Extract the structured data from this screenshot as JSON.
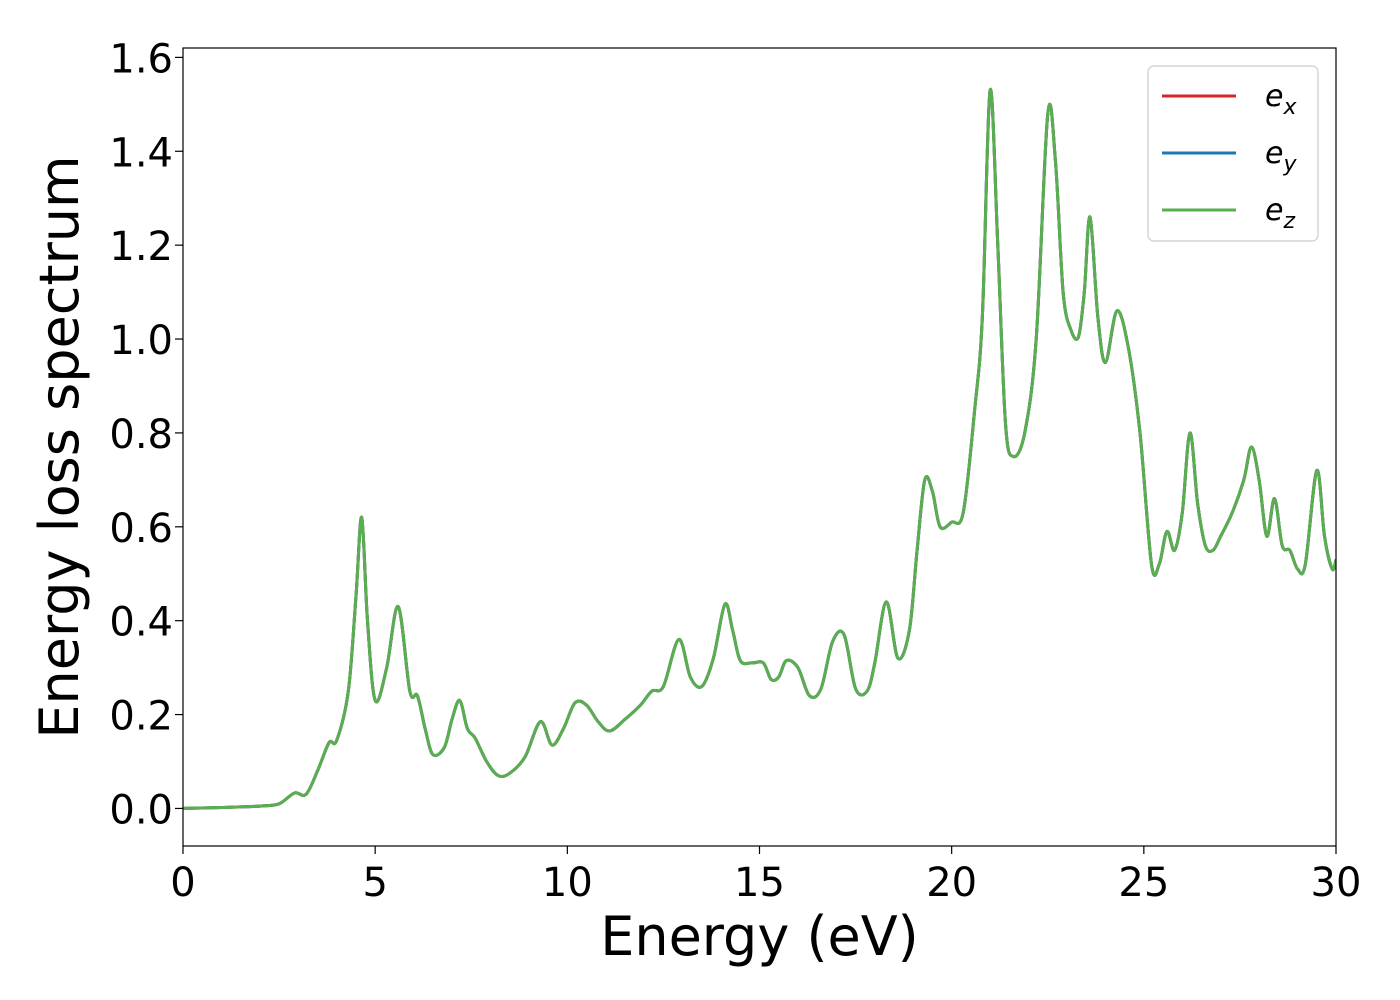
{
  "chart_data": {
    "type": "line",
    "title": "",
    "xlabel": "Energy (eV)",
    "ylabel": "Energy loss spectrum",
    "xlim": [
      0,
      30
    ],
    "ylim": [
      -0.08,
      1.62
    ],
    "xticks": [
      0,
      5,
      10,
      15,
      20,
      25,
      30
    ],
    "xtick_labels": [
      "0",
      "5",
      "10",
      "15",
      "20",
      "25",
      "30"
    ],
    "yticks": [
      0.0,
      0.2,
      0.4,
      0.6,
      0.8,
      1.0,
      1.2,
      1.4,
      1.6
    ],
    "ytick_labels": [
      "0.0",
      "0.2",
      "0.4",
      "0.6",
      "0.8",
      "1.0",
      "1.2",
      "1.4",
      "1.6"
    ],
    "grid": false,
    "legend_position": "top-right",
    "colors": {
      "e_x": "#d62728",
      "e_y": "#1f77b4",
      "e_z": "#5aae50"
    },
    "legend": [
      {
        "base": "e",
        "sub": "x",
        "series_key": "e_x"
      },
      {
        "base": "e",
        "sub": "y",
        "series_key": "e_y"
      },
      {
        "base": "e",
        "sub": "z",
        "series_key": "e_z"
      }
    ],
    "x": [
      0,
      1,
      2,
      2.5,
      2.9,
      3.2,
      3.5,
      3.8,
      4.0,
      4.3,
      4.5,
      4.65,
      4.8,
      5.0,
      5.3,
      5.6,
      5.9,
      6.1,
      6.3,
      6.5,
      6.8,
      7.0,
      7.2,
      7.4,
      7.6,
      7.9,
      8.2,
      8.5,
      8.9,
      9.3,
      9.6,
      9.9,
      10.2,
      10.5,
      10.8,
      11.1,
      11.5,
      11.9,
      12.2,
      12.5,
      12.9,
      13.2,
      13.5,
      13.8,
      14.1,
      14.3,
      14.5,
      14.8,
      15.1,
      15.3,
      15.5,
      15.7,
      16.0,
      16.3,
      16.6,
      16.9,
      17.2,
      17.5,
      17.8,
      18.0,
      18.3,
      18.6,
      18.9,
      19.1,
      19.3,
      19.5,
      19.7,
      20.0,
      20.3,
      20.6,
      20.8,
      21.0,
      21.2,
      21.4,
      21.6,
      21.9,
      22.2,
      22.5,
      22.7,
      22.9,
      23.1,
      23.3,
      23.45,
      23.6,
      23.8,
      24.0,
      24.3,
      24.6,
      24.9,
      25.2,
      25.4,
      25.6,
      25.8,
      26.0,
      26.2,
      26.4,
      26.6,
      26.8,
      27.0,
      27.3,
      27.6,
      27.8,
      28.0,
      28.2,
      28.4,
      28.6,
      28.8,
      29.0,
      29.2,
      29.5,
      29.7,
      29.9,
      30.0
    ],
    "series": [
      {
        "name": "e_x",
        "values": [
          0.0,
          0.002,
          0.005,
          0.01,
          0.033,
          0.03,
          0.08,
          0.14,
          0.145,
          0.25,
          0.45,
          0.62,
          0.4,
          0.23,
          0.3,
          0.43,
          0.25,
          0.24,
          0.17,
          0.115,
          0.13,
          0.19,
          0.23,
          0.17,
          0.15,
          0.1,
          0.07,
          0.075,
          0.11,
          0.185,
          0.135,
          0.17,
          0.225,
          0.22,
          0.185,
          0.165,
          0.19,
          0.22,
          0.25,
          0.26,
          0.36,
          0.28,
          0.26,
          0.32,
          0.435,
          0.38,
          0.315,
          0.31,
          0.31,
          0.275,
          0.28,
          0.315,
          0.3,
          0.24,
          0.255,
          0.355,
          0.37,
          0.255,
          0.25,
          0.31,
          0.44,
          0.32,
          0.38,
          0.55,
          0.7,
          0.675,
          0.6,
          0.61,
          0.63,
          0.85,
          1.05,
          1.53,
          1.2,
          0.82,
          0.75,
          0.8,
          1.0,
          1.48,
          1.38,
          1.1,
          1.02,
          1.005,
          1.1,
          1.26,
          1.05,
          0.95,
          1.06,
          0.98,
          0.8,
          0.52,
          0.52,
          0.59,
          0.55,
          0.63,
          0.8,
          0.65,
          0.56,
          0.55,
          0.58,
          0.63,
          0.7,
          0.77,
          0.7,
          0.58,
          0.66,
          0.56,
          0.55,
          0.51,
          0.52,
          0.72,
          0.58,
          0.51,
          0.53
        ]
      },
      {
        "name": "e_y",
        "values": [
          0.0,
          0.002,
          0.005,
          0.01,
          0.033,
          0.03,
          0.08,
          0.14,
          0.145,
          0.25,
          0.45,
          0.62,
          0.4,
          0.23,
          0.3,
          0.43,
          0.25,
          0.24,
          0.17,
          0.115,
          0.13,
          0.19,
          0.23,
          0.17,
          0.15,
          0.1,
          0.07,
          0.075,
          0.11,
          0.185,
          0.135,
          0.17,
          0.225,
          0.22,
          0.185,
          0.165,
          0.19,
          0.22,
          0.25,
          0.26,
          0.36,
          0.28,
          0.26,
          0.32,
          0.435,
          0.38,
          0.315,
          0.31,
          0.31,
          0.275,
          0.28,
          0.315,
          0.3,
          0.24,
          0.255,
          0.355,
          0.37,
          0.255,
          0.25,
          0.31,
          0.44,
          0.32,
          0.38,
          0.55,
          0.7,
          0.675,
          0.6,
          0.61,
          0.63,
          0.85,
          1.05,
          1.53,
          1.2,
          0.82,
          0.75,
          0.8,
          1.0,
          1.48,
          1.38,
          1.1,
          1.02,
          1.005,
          1.1,
          1.26,
          1.05,
          0.95,
          1.06,
          0.98,
          0.8,
          0.52,
          0.52,
          0.59,
          0.55,
          0.63,
          0.8,
          0.65,
          0.56,
          0.55,
          0.58,
          0.63,
          0.7,
          0.77,
          0.7,
          0.58,
          0.66,
          0.56,
          0.55,
          0.51,
          0.52,
          0.72,
          0.58,
          0.51,
          0.53
        ]
      },
      {
        "name": "e_z",
        "values": [
          0.0,
          0.002,
          0.005,
          0.01,
          0.033,
          0.03,
          0.08,
          0.14,
          0.145,
          0.25,
          0.45,
          0.62,
          0.4,
          0.23,
          0.3,
          0.43,
          0.25,
          0.24,
          0.17,
          0.115,
          0.13,
          0.19,
          0.23,
          0.17,
          0.15,
          0.1,
          0.07,
          0.075,
          0.11,
          0.185,
          0.135,
          0.17,
          0.225,
          0.22,
          0.185,
          0.165,
          0.19,
          0.22,
          0.25,
          0.26,
          0.36,
          0.28,
          0.26,
          0.32,
          0.435,
          0.38,
          0.315,
          0.31,
          0.31,
          0.275,
          0.28,
          0.315,
          0.3,
          0.24,
          0.255,
          0.355,
          0.37,
          0.255,
          0.25,
          0.31,
          0.44,
          0.32,
          0.38,
          0.55,
          0.7,
          0.675,
          0.6,
          0.61,
          0.63,
          0.85,
          1.05,
          1.53,
          1.2,
          0.82,
          0.75,
          0.8,
          1.0,
          1.48,
          1.38,
          1.1,
          1.02,
          1.005,
          1.1,
          1.26,
          1.05,
          0.95,
          1.06,
          0.98,
          0.8,
          0.52,
          0.52,
          0.59,
          0.55,
          0.63,
          0.8,
          0.65,
          0.56,
          0.55,
          0.58,
          0.63,
          0.7,
          0.77,
          0.7,
          0.58,
          0.66,
          0.56,
          0.55,
          0.51,
          0.52,
          0.72,
          0.58,
          0.51,
          0.53
        ]
      }
    ]
  }
}
